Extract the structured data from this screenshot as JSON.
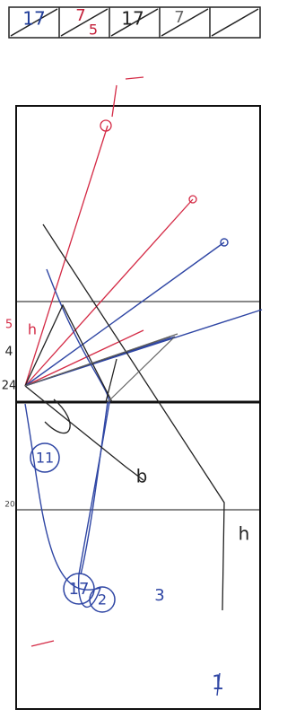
{
  "score_boxes": [
    {
      "number": "17"
    },
    {
      "number": "7",
      "sub": "5"
    },
    {
      "number": "17"
    },
    {
      "number": "7"
    }
  ],
  "court_labels": {
    "player_11": "11",
    "player_17": "17",
    "player_2": "2",
    "player_3": "3",
    "player_1": "1",
    "mark_h_right": "h",
    "mark_b": "b",
    "mark_h_red": "h",
    "side_4": "4",
    "side_24": "24",
    "side_5": "5",
    "side_20": "20"
  }
}
